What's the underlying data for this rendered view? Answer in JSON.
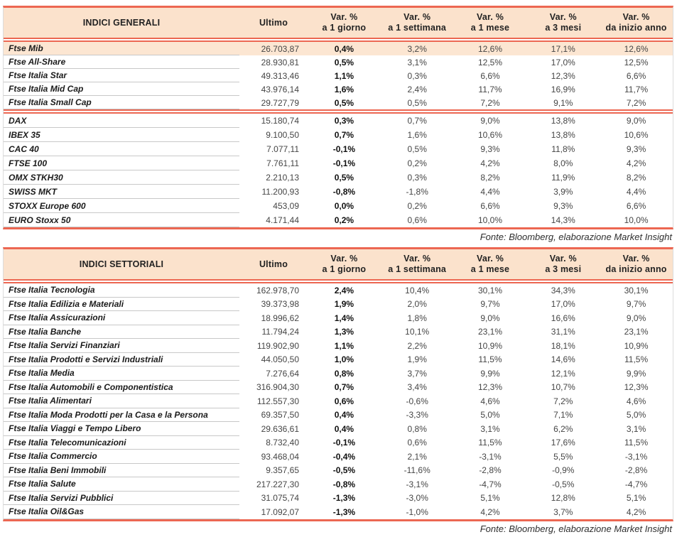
{
  "colors": {
    "accent_red": "#EC6752",
    "header_bg": "#FBE2CC",
    "highlight_row_bg": "#FCE6D2"
  },
  "tables": [
    {
      "title": "INDICI GENERALI",
      "ultimo_label": "Ultimo",
      "columns": [
        {
          "line1": "Var. %",
          "line2": "a 1 giorno"
        },
        {
          "line1": "Var. %",
          "line2": "a 1 settimana"
        },
        {
          "line1": "Var. %",
          "line2": "a 1 mese"
        },
        {
          "line1": "Var. %",
          "line2": "a 3 mesi"
        },
        {
          "line1": "Var. %",
          "line2": "da inizio anno"
        }
      ],
      "groups": [
        {
          "rows": [
            {
              "name": "Ftse Mib",
              "ultimo": "26.703,87",
              "d1": "0,4%",
              "w1": "3,2%",
              "m1": "12,6%",
              "m3": "17,1%",
              "ytd": "12,6%",
              "highlight": true
            },
            {
              "name": "Ftse All-Share",
              "ultimo": "28.930,81",
              "d1": "0,5%",
              "w1": "3,1%",
              "m1": "12,5%",
              "m3": "17,0%",
              "ytd": "12,5%"
            },
            {
              "name": "Ftse Italia Star",
              "ultimo": "49.313,46",
              "d1": "1,1%",
              "w1": "0,3%",
              "m1": "6,6%",
              "m3": "12,3%",
              "ytd": "6,6%"
            },
            {
              "name": "Ftse Italia Mid Cap",
              "ultimo": "43.976,14",
              "d1": "1,6%",
              "w1": "2,4%",
              "m1": "11,7%",
              "m3": "16,9%",
              "ytd": "11,7%"
            },
            {
              "name": "Ftse Italia Small Cap",
              "ultimo": "29.727,79",
              "d1": "0,5%",
              "w1": "0,5%",
              "m1": "7,2%",
              "m3": "9,1%",
              "ytd": "7,2%"
            }
          ]
        },
        {
          "rows": [
            {
              "name": "DAX",
              "ultimo": "15.180,74",
              "d1": "0,3%",
              "w1": "0,7%",
              "m1": "9,0%",
              "m3": "13,8%",
              "ytd": "9,0%"
            },
            {
              "name": "IBEX 35",
              "ultimo": "9.100,50",
              "d1": "0,7%",
              "w1": "1,6%",
              "m1": "10,6%",
              "m3": "13,8%",
              "ytd": "10,6%"
            },
            {
              "name": "CAC 40",
              "ultimo": "7.077,11",
              "d1": "-0,1%",
              "w1": "0,5%",
              "m1": "9,3%",
              "m3": "11,8%",
              "ytd": "9,3%"
            },
            {
              "name": "FTSE 100",
              "ultimo": "7.761,11",
              "d1": "-0,1%",
              "w1": "0,2%",
              "m1": "4,2%",
              "m3": "8,0%",
              "ytd": "4,2%"
            },
            {
              "name": "OMX STKH30",
              "ultimo": "2.210,13",
              "d1": "0,5%",
              "w1": "0,3%",
              "m1": "8,2%",
              "m3": "11,9%",
              "ytd": "8,2%"
            },
            {
              "name": "SWISS MKT",
              "ultimo": "11.200,93",
              "d1": "-0,8%",
              "w1": "-1,8%",
              "m1": "4,4%",
              "m3": "3,9%",
              "ytd": "4,4%"
            },
            {
              "name": "STOXX Europe 600",
              "ultimo": "453,09",
              "d1": "0,0%",
              "w1": "0,2%",
              "m1": "6,6%",
              "m3": "9,3%",
              "ytd": "6,6%"
            },
            {
              "name": "EURO Stoxx 50",
              "ultimo": "4.171,44",
              "d1": "0,2%",
              "w1": "0,6%",
              "m1": "10,0%",
              "m3": "14,3%",
              "ytd": "10,0%"
            }
          ]
        }
      ],
      "fonte": "Fonte: Bloomberg, elaborazione Market Insight"
    },
    {
      "title": "INDICI SETTORIALI",
      "ultimo_label": "Ultimo",
      "columns": [
        {
          "line1": "Var. %",
          "line2": "a 1 giorno"
        },
        {
          "line1": "Var. %",
          "line2": "a 1 settimana"
        },
        {
          "line1": "Var. %",
          "line2": "a 1 mese"
        },
        {
          "line1": "Var. %",
          "line2": "a 3 mesi"
        },
        {
          "line1": "Var. %",
          "line2": "da inizio anno"
        }
      ],
      "groups": [
        {
          "rows": [
            {
              "name": "Ftse Italia Tecnologia",
              "ultimo": "162.978,70",
              "d1": "2,4%",
              "w1": "10,4%",
              "m1": "30,1%",
              "m3": "34,3%",
              "ytd": "30,1%"
            },
            {
              "name": "Ftse Italia Edilizia e Materiali",
              "ultimo": "39.373,98",
              "d1": "1,9%",
              "w1": "2,0%",
              "m1": "9,7%",
              "m3": "17,0%",
              "ytd": "9,7%"
            },
            {
              "name": "Ftse Italia Assicurazioni",
              "ultimo": "18.996,62",
              "d1": "1,4%",
              "w1": "1,8%",
              "m1": "9,0%",
              "m3": "16,6%",
              "ytd": "9,0%"
            },
            {
              "name": "Ftse Italia Banche",
              "ultimo": "11.794,24",
              "d1": "1,3%",
              "w1": "10,1%",
              "m1": "23,1%",
              "m3": "31,1%",
              "ytd": "23,1%"
            },
            {
              "name": "Ftse Italia Servizi Finanziari",
              "ultimo": "119.902,90",
              "d1": "1,1%",
              "w1": "2,2%",
              "m1": "10,9%",
              "m3": "18,1%",
              "ytd": "10,9%"
            },
            {
              "name": "Ftse Italia Prodotti e Servizi Industriali",
              "ultimo": "44.050,50",
              "d1": "1,0%",
              "w1": "1,9%",
              "m1": "11,5%",
              "m3": "14,6%",
              "ytd": "11,5%"
            },
            {
              "name": "Ftse Italia Media",
              "ultimo": "7.276,64",
              "d1": "0,8%",
              "w1": "3,7%",
              "m1": "9,9%",
              "m3": "12,1%",
              "ytd": "9,9%"
            },
            {
              "name": "Ftse Italia Automobili e Componentistica",
              "ultimo": "316.904,30",
              "d1": "0,7%",
              "w1": "3,4%",
              "m1": "12,3%",
              "m3": "10,7%",
              "ytd": "12,3%"
            },
            {
              "name": "Ftse Italia Alimentari",
              "ultimo": "112.557,30",
              "d1": "0,6%",
              "w1": "-0,6%",
              "m1": "4,6%",
              "m3": "7,2%",
              "ytd": "4,6%"
            },
            {
              "name": "Ftse Italia Moda Prodotti per la Casa e la Persona",
              "ultimo": "69.357,50",
              "d1": "0,4%",
              "w1": "-3,3%",
              "m1": "5,0%",
              "m3": "7,1%",
              "ytd": "5,0%"
            },
            {
              "name": "Ftse Italia Viaggi e Tempo Libero",
              "ultimo": "29.636,61",
              "d1": "0,4%",
              "w1": "0,8%",
              "m1": "3,1%",
              "m3": "6,2%",
              "ytd": "3,1%"
            },
            {
              "name": "Ftse Italia Telecomunicazioni",
              "ultimo": "8.732,40",
              "d1": "-0,1%",
              "w1": "0,6%",
              "m1": "11,5%",
              "m3": "17,6%",
              "ytd": "11,5%"
            },
            {
              "name": "Ftse Italia Commercio",
              "ultimo": "93.468,04",
              "d1": "-0,4%",
              "w1": "2,1%",
              "m1": "-3,1%",
              "m3": "5,5%",
              "ytd": "-3,1%"
            },
            {
              "name": "Ftse Italia Beni Immobili",
              "ultimo": "9.357,65",
              "d1": "-0,5%",
              "w1": "-11,6%",
              "m1": "-2,8%",
              "m3": "-0,9%",
              "ytd": "-2,8%"
            },
            {
              "name": "Ftse Italia Salute",
              "ultimo": "217.227,30",
              "d1": "-0,8%",
              "w1": "-3,1%",
              "m1": "-4,7%",
              "m3": "-0,5%",
              "ytd": "-4,7%"
            },
            {
              "name": "Ftse Italia Servizi Pubblici",
              "ultimo": "31.075,74",
              "d1": "-1,3%",
              "w1": "-3,0%",
              "m1": "5,1%",
              "m3": "12,8%",
              "ytd": "5,1%"
            },
            {
              "name": "Ftse Italia Oil&Gas",
              "ultimo": "17.092,07",
              "d1": "-1,3%",
              "w1": "-1,0%",
              "m1": "4,2%",
              "m3": "3,7%",
              "ytd": "4,2%"
            }
          ]
        }
      ],
      "fonte": "Fonte: Bloomberg, elaborazione Market Insight"
    }
  ]
}
